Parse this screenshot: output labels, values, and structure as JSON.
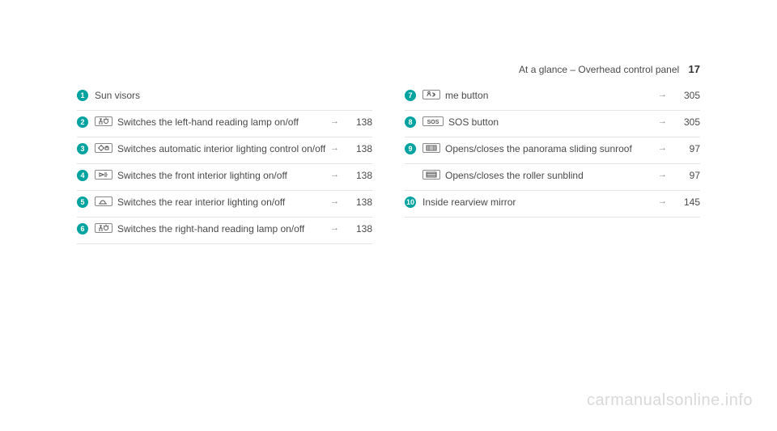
{
  "header": {
    "title": "At a glance – Overhead control panel",
    "page": "17"
  },
  "left": [
    {
      "num": "1",
      "icon": null,
      "text": "Sun visors",
      "arrow": "",
      "ref": ""
    },
    {
      "num": "2",
      "icon": "readlamp",
      "text": "Switches the left-hand reading lamp on/off",
      "arrow": "→",
      "ref": "138"
    },
    {
      "num": "3",
      "icon": "auto",
      "text": "Switches automatic interior lighting control on/off",
      "arrow": "→",
      "ref": "138"
    },
    {
      "num": "4",
      "icon": "frontlight",
      "text": "Switches the front interior lighting on/off",
      "arrow": "→",
      "ref": "138"
    },
    {
      "num": "5",
      "icon": "rearlight",
      "text": "Switches the rear interior lighting on/off",
      "arrow": "→",
      "ref": "138"
    },
    {
      "num": "6",
      "icon": "readlamp",
      "text": "Switches the right-hand reading lamp on/off",
      "arrow": "→",
      "ref": "138"
    }
  ],
  "right": [
    {
      "num": "7",
      "icon": "me",
      "text": "me button",
      "arrow": "→",
      "ref": "305"
    },
    {
      "num": "8",
      "icon": "sos",
      "text": "SOS button",
      "arrow": "→",
      "ref": "305"
    },
    {
      "num": "9",
      "icon": "roof",
      "text": "Opens/closes the panorama sliding sunroof",
      "arrow": "→",
      "ref": "97"
    },
    {
      "num": "",
      "icon": "blind",
      "text": "Opens/closes the roller sunblind",
      "arrow": "→",
      "ref": "97"
    },
    {
      "num": "10",
      "icon": null,
      "text": "Inside rearview mirror",
      "arrow": "→",
      "ref": "145"
    }
  ],
  "watermark": "carmanualsonline.info",
  "icons": {
    "readlamp": "<svg width='16' height='10' viewBox='0 0 16 10'><path d='M3 9 L3 5 L6 5 L6 9' fill='none' stroke='#555' stroke-width='1'/><path d='M4.5 5 L4.5 2 M3 2 L6 2' stroke='#555' stroke-width='1'/><circle cx='11' cy='5' r='2.5' fill='none' stroke='#555' stroke-width='1'/><path d='M11 2 L11 0.5 M9 3 L8 2 M13 3 L14 2' stroke='#555' stroke-width='1'/></svg>",
    "auto": "<svg width='16' height='10' viewBox='0 0 16 10'><circle cx='5' cy='5' r='2.5' fill='none' stroke='#555' stroke-width='1'/><path d='M5 1 L5 2 M5 8 L5 9 M1 5 L2 5 M8 5 L9 5' stroke='#555' stroke-width='1'/><rect x='10' y='4' width='4' height='3' fill='none' stroke='#555' stroke-width='1'/><path d='M11 4 L11 3 L13 3 L13 4' fill='none' stroke='#555' stroke-width='1'/></svg>",
    "frontlight": "<svg width='16' height='10' viewBox='0 0 16 10'><path d='M3 3 L8 5 L3 7 Z' fill='none' stroke='#555' stroke-width='1'/><path d='M9 3 L12 3 M9 5 L13 5 M9 7 L12 7' stroke='#555' stroke-width='1'/></svg>",
    "rearlight": "<svg width='16' height='10' viewBox='0 0 16 10'><path d='M4 6 Q7 2 10 6' fill='none' stroke='#555' stroke-width='1'/><path d='M4 8 L4 6 M10 8 L10 6' stroke='#555' stroke-width='1'/><path d='M2 8 L12 8' stroke='#555' stroke-width='1'/></svg>",
    "me": "<svg width='16' height='10' viewBox='0 0 16 10'><path d='M3 7 Q3 4 5 4 Q7 4 7 7' fill='none' stroke='#555' stroke-width='1'/><circle cx='5' cy='2.5' r='1.2' fill='none' stroke='#555' stroke-width='1'/><path d='M9 3 Q12 3 12 5 Q12 7 9 7' fill='none' stroke='#555' stroke-width='1'/><path d='M10 5 L13 5' stroke='#555' stroke-width='1'/></svg>",
    "sos": "<svg width='20' height='10' viewBox='0 0 20 10'><text x='10' y='8' font-size='7' font-family='Arial' font-weight='bold' fill='#555' text-anchor='middle'>SOS</text></svg>",
    "roof": "<svg width='16' height='10' viewBox='0 0 16 10'><rect x='2' y='2' width='12' height='6' fill='none' stroke='#555' stroke-width='1'/><path d='M2 4 L14 4 M2 6 L14 6 M5 2 L5 8 M11 2 L11 8' stroke='#555' stroke-width='0.7'/></svg>",
    "blind": "<svg width='16' height='10' viewBox='0 0 16 10'><rect x='2' y='2' width='12' height='6' fill='none' stroke='#555' stroke-width='1'/><path d='M2 3.5 L14 3.5 M2 5 L14 5 M2 6.5 L14 6.5' stroke='#555' stroke-width='0.8'/></svg>"
  }
}
